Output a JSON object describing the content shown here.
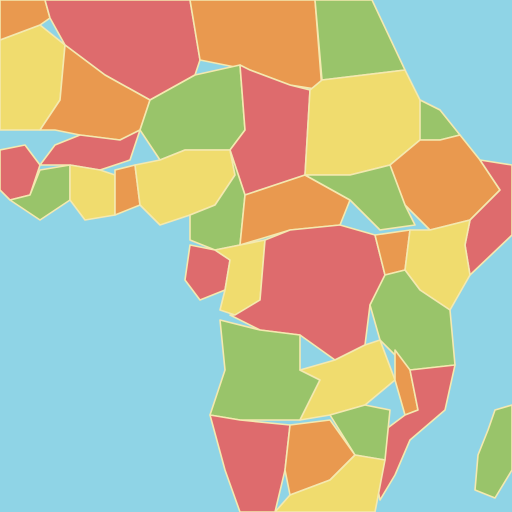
{
  "map": {
    "ocean_color": "#8fd4e6",
    "border_color": "#f4e9b0",
    "palette": {
      "red": "#de6b6d",
      "orange": "#e9994f",
      "yellow": "#f0dc6e",
      "green": "#99c46a"
    },
    "regions": [
      {
        "id": "libya",
        "color": "orange"
      },
      {
        "id": "egypt",
        "color": "green"
      },
      {
        "id": "algeria",
        "color": "red"
      },
      {
        "id": "mali",
        "color": "orange"
      },
      {
        "id": "niger",
        "color": "green"
      },
      {
        "id": "chad",
        "color": "red"
      },
      {
        "id": "sudan",
        "color": "yellow"
      },
      {
        "id": "ethiopia",
        "color": "orange"
      },
      {
        "id": "nigeria",
        "color": "yellow"
      },
      {
        "id": "drc",
        "color": "red"
      },
      {
        "id": "angola",
        "color": "green"
      },
      {
        "id": "tanzania",
        "color": "green"
      },
      {
        "id": "namibia",
        "color": "red"
      },
      {
        "id": "mozambique",
        "color": "red"
      },
      {
        "id": "madagascar",
        "color": "green"
      }
    ]
  }
}
